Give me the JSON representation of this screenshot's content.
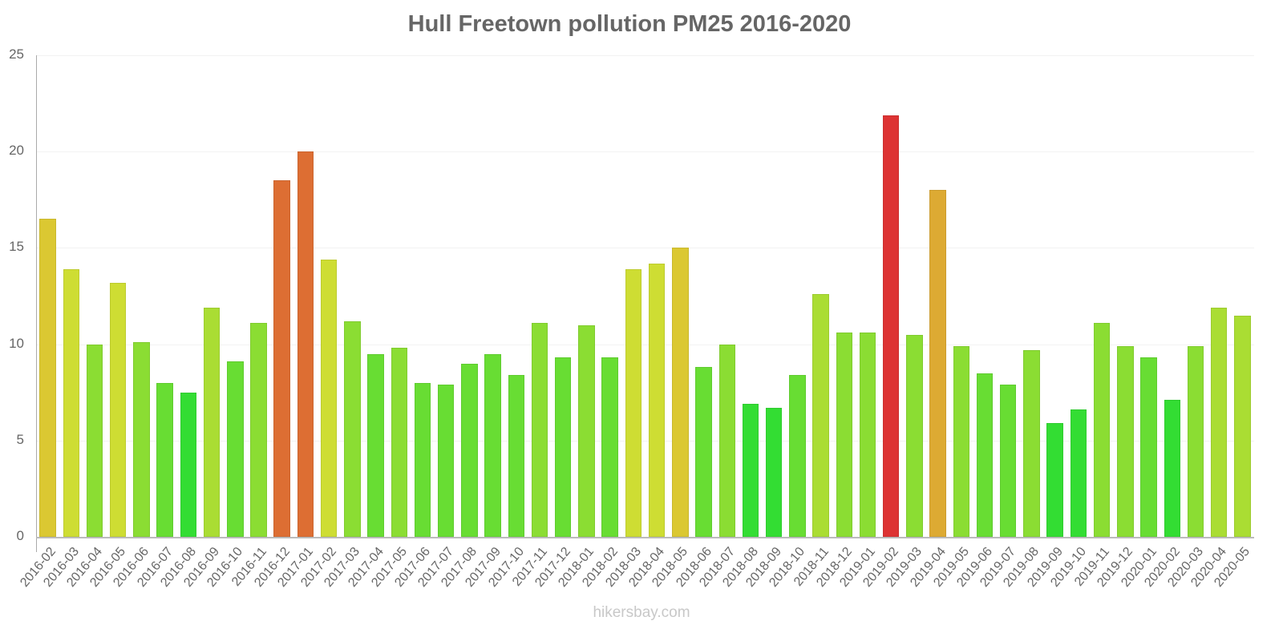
{
  "title": "Hull Freetown pollution PM25 2016-2020",
  "watermark": "hikersbay.com",
  "chart_data": {
    "type": "bar",
    "title": "Hull Freetown pollution PM25 2016-2020",
    "xlabel": "",
    "ylabel": "",
    "ylim": [
      0,
      25
    ],
    "yticks": [
      0,
      5,
      10,
      15,
      20,
      25
    ],
    "grid": true,
    "legend": "none",
    "categories": [
      "2016-02",
      "2016-03",
      "2016-04",
      "2016-05",
      "2016-06",
      "2016-07",
      "2016-08",
      "2016-09",
      "2016-10",
      "2016-11",
      "2016-12",
      "2017-01",
      "2017-02",
      "2017-03",
      "2017-04",
      "2017-05",
      "2017-06",
      "2017-07",
      "2017-08",
      "2017-09",
      "2017-10",
      "2017-11",
      "2017-12",
      "2018-01",
      "2018-02",
      "2018-03",
      "2018-04",
      "2018-05",
      "2018-06",
      "2018-07",
      "2018-08",
      "2018-09",
      "2018-10",
      "2018-11",
      "2018-12",
      "2019-01",
      "2019-02",
      "2019-03",
      "2019-04",
      "2019-05",
      "2019-06",
      "2019-07",
      "2019-08",
      "2019-09",
      "2019-10",
      "2019-11",
      "2019-12",
      "2020-01",
      "2020-02",
      "2020-03",
      "2020-04",
      "2020-05"
    ],
    "values": [
      16.5,
      13.9,
      10.0,
      13.2,
      10.1,
      8.0,
      7.5,
      11.9,
      9.1,
      11.1,
      18.5,
      20.0,
      14.4,
      11.2,
      9.5,
      9.8,
      8.0,
      7.9,
      9.0,
      9.5,
      8.4,
      11.1,
      9.3,
      11.0,
      9.3,
      13.9,
      14.2,
      15.0,
      8.8,
      10.0,
      6.9,
      6.7,
      8.4,
      12.6,
      10.6,
      10.6,
      21.9,
      10.5,
      18.0,
      9.9,
      8.5,
      7.9,
      9.7,
      5.9,
      6.6,
      11.1,
      9.9,
      9.3,
      7.1,
      9.9,
      11.9,
      11.5
    ],
    "colors": [
      "#dbc832",
      "#cedd33",
      "#8bdd33",
      "#cedd33",
      "#8bdd33",
      "#68dd33",
      "#33dd33",
      "#aadd33",
      "#68dd33",
      "#8bdd33",
      "#dd6e33",
      "#dd6e33",
      "#cedd33",
      "#8bdd33",
      "#68dd33",
      "#8bdd33",
      "#68dd33",
      "#68dd33",
      "#68dd33",
      "#68dd33",
      "#68dd33",
      "#8bdd33",
      "#68dd33",
      "#8bdd33",
      "#68dd33",
      "#cedd33",
      "#cedd33",
      "#dbc832",
      "#68dd33",
      "#8bdd33",
      "#33dd33",
      "#33dd33",
      "#68dd33",
      "#aadd33",
      "#8bdd33",
      "#8bdd33",
      "#dd3333",
      "#8bdd33",
      "#ddaa33",
      "#8bdd33",
      "#68dd33",
      "#68dd33",
      "#8bdd33",
      "#33dd33",
      "#33dd33",
      "#8bdd33",
      "#8bdd33",
      "#68dd33",
      "#33dd33",
      "#8bdd33",
      "#aadd33",
      "#aadd33"
    ]
  }
}
